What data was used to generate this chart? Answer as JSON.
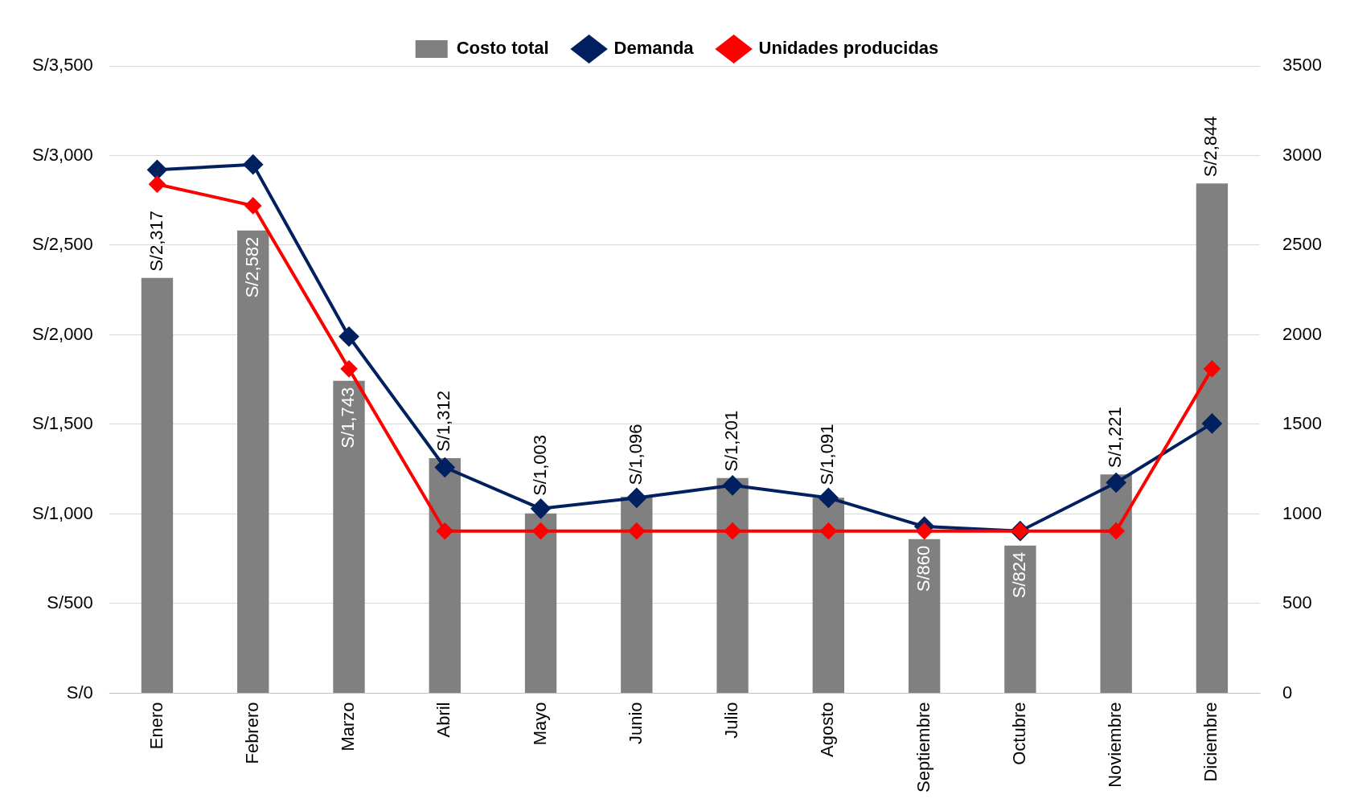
{
  "chart_data": {
    "type": "bar",
    "categories": [
      "Enero",
      "Febrero",
      "Marzo",
      "Abril",
      "Mayo",
      "Junio",
      "Julio",
      "Agosto",
      "Septiembre",
      "Octubre",
      "Noviembre",
      "Diciembre"
    ],
    "series": [
      {
        "name": "Costo total",
        "color": "#808080",
        "values": [
          2317,
          2582,
          1743,
          1312,
          1003,
          1096,
          1201,
          1091,
          860,
          824,
          1221,
          2844
        ],
        "value_labels": [
          "S/2,317",
          "S/2,582",
          "S/1,743",
          "S/1,312",
          "S/1,003",
          "S/1,096",
          "S/1,201",
          "S/1,091",
          "S/860",
          "S/824",
          "S/1,221",
          "S/2,844"
        ]
      },
      {
        "name": "Demanda",
        "type": "line",
        "axis": "y2",
        "color": "#002060",
        "values": [
          2920,
          2950,
          1990,
          1260,
          1030,
          1090,
          1160,
          1090,
          930,
          905,
          1175,
          1505
        ]
      },
      {
        "name": "Unidades producidas",
        "type": "line",
        "axis": "y2",
        "color": "#ff0000",
        "values": [
          2840,
          2720,
          1810,
          905,
          905,
          905,
          905,
          905,
          905,
          905,
          905,
          1810
        ]
      }
    ],
    "ylim": [
      0,
      3500
    ],
    "yticks": [
      {
        "value": 0,
        "label": "S/0"
      },
      {
        "value": 500,
        "label": "S/500"
      },
      {
        "value": 1000,
        "label": "S/1,000"
      },
      {
        "value": 1500,
        "label": "S/1,500"
      },
      {
        "value": 2000,
        "label": "S/2,000"
      },
      {
        "value": 2500,
        "label": "S/2,500"
      },
      {
        "value": 3000,
        "label": "S/3,000"
      },
      {
        "value": 3500,
        "label": "S/3,500"
      }
    ],
    "y2lim": [
      0,
      3500
    ],
    "y2ticks": [
      0,
      500,
      1000,
      1500,
      2000,
      2500,
      3000,
      3500
    ],
    "grid": "y",
    "legend": "top",
    "marker": "diamond"
  }
}
